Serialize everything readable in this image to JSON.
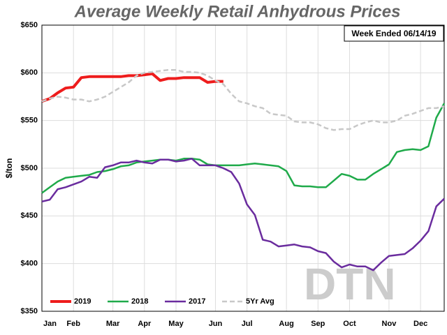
{
  "chart_data": {
    "type": "line",
    "title": "Average Weekly Retail Anhydrous Prices",
    "annotation": "Week Ended 06/14/19",
    "watermark": "DTN",
    "y_label": "$/ton",
    "categories": [
      "Jan",
      null,
      null,
      null,
      "Feb",
      null,
      null,
      null,
      null,
      "Mar",
      null,
      null,
      null,
      "Apr",
      null,
      null,
      null,
      "May",
      null,
      null,
      null,
      null,
      "Jun",
      null,
      null,
      null,
      "Jul",
      null,
      null,
      null,
      null,
      "Aug",
      null,
      null,
      null,
      "Sep",
      null,
      null,
      null,
      "Oct",
      null,
      null,
      null,
      null,
      "Nov",
      null,
      null,
      null,
      "Dec",
      null,
      null,
      null
    ],
    "ylim": [
      350,
      650
    ],
    "yticks": [
      {
        "value": 350,
        "label": "$350"
      },
      {
        "value": 400,
        "label": "$400"
      },
      {
        "value": 450,
        "label": "$450"
      },
      {
        "value": 500,
        "label": "$500"
      },
      {
        "value": 550,
        "label": "$550"
      },
      {
        "value": 600,
        "label": "$600"
      },
      {
        "value": 650,
        "label": "$650"
      }
    ],
    "grid": true,
    "legend": "bottom",
    "series": [
      {
        "name": "2019",
        "color": "#ee1c1c",
        "width": 4,
        "dashed": false,
        "values": [
          570,
          573,
          579,
          584,
          585,
          595,
          596,
          596,
          596,
          596,
          596,
          597,
          597,
          598,
          599,
          592,
          594,
          594,
          595,
          595,
          595,
          590,
          591,
          591,
          null,
          null,
          null,
          null,
          null,
          null,
          null,
          null,
          null,
          null,
          null,
          null,
          null,
          null,
          null,
          null,
          null,
          null,
          null,
          null,
          null,
          null,
          null,
          null,
          null,
          null,
          null,
          null
        ]
      },
      {
        "name": "2018",
        "color": "#1faa4a",
        "width": 2.5,
        "dashed": false,
        "values": [
          474,
          480,
          486,
          490,
          491,
          492,
          493,
          496,
          497,
          499,
          502,
          503,
          506,
          507,
          508,
          509,
          509,
          508,
          510,
          510,
          509,
          504,
          503,
          503,
          503,
          503,
          504,
          505,
          504,
          503,
          502,
          497,
          482,
          481,
          481,
          480,
          480,
          487,
          494,
          492,
          488,
          488,
          494,
          499,
          504,
          517,
          519,
          520,
          519,
          523,
          553,
          568
        ]
      },
      {
        "name": "2017",
        "color": "#6a2c9e",
        "width": 2.5,
        "dashed": false,
        "values": [
          465,
          467,
          478,
          480,
          483,
          486,
          491,
          490,
          501,
          503,
          506,
          506,
          508,
          506,
          505,
          509,
          509,
          507,
          508,
          510,
          503,
          503,
          503,
          500,
          496,
          484,
          462,
          451,
          425,
          423,
          418,
          419,
          420,
          418,
          417,
          413,
          411,
          402,
          396,
          399,
          397,
          397,
          393,
          401,
          408,
          409,
          410,
          416,
          424,
          434,
          460,
          468
        ]
      },
      {
        "name": "5Yr Avg",
        "color": "#c8c8c8",
        "width": 2.5,
        "dashed": true,
        "values": [
          570,
          573,
          575,
          574,
          572,
          572,
          570,
          572,
          575,
          580,
          585,
          590,
          597,
          600,
          601,
          602,
          603,
          603,
          601,
          601,
          600,
          597,
          592,
          588,
          578,
          570,
          568,
          565,
          563,
          557,
          556,
          555,
          549,
          548,
          548,
          546,
          542,
          540,
          541,
          541,
          545,
          548,
          550,
          548,
          548,
          550,
          555,
          557,
          560,
          563,
          563,
          565
        ]
      }
    ]
  }
}
